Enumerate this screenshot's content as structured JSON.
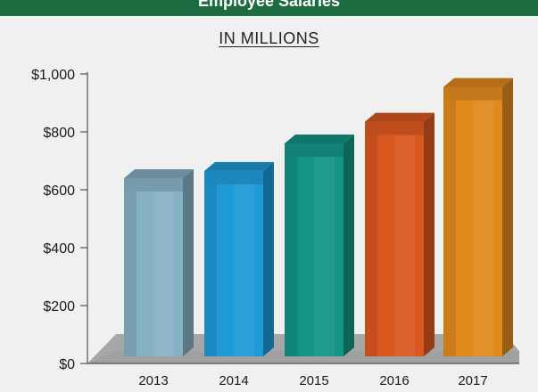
{
  "banner": {
    "title": "Employee Salaries",
    "color": "#1d6b40"
  },
  "chart_data": {
    "type": "bar",
    "title": "",
    "subtitle": "IN MILLIONS",
    "xlabel": "",
    "ylabel": "",
    "categories": [
      "2013",
      "2014",
      "2015",
      "2016",
      "2017"
    ],
    "values": [
      640,
      665,
      760,
      835,
      955
    ],
    "ylim": [
      0,
      1000
    ],
    "yticks": [
      0,
      200,
      400,
      600,
      800,
      1000
    ],
    "ytick_labels": [
      "$0",
      "$200",
      "$400",
      "$600",
      "$800",
      "$1,000"
    ],
    "grid": false,
    "legend": "none",
    "bar_colors": [
      "#86b0c4",
      "#1e9ad6",
      "#139485",
      "#d9581f",
      "#e08a1e"
    ]
  }
}
